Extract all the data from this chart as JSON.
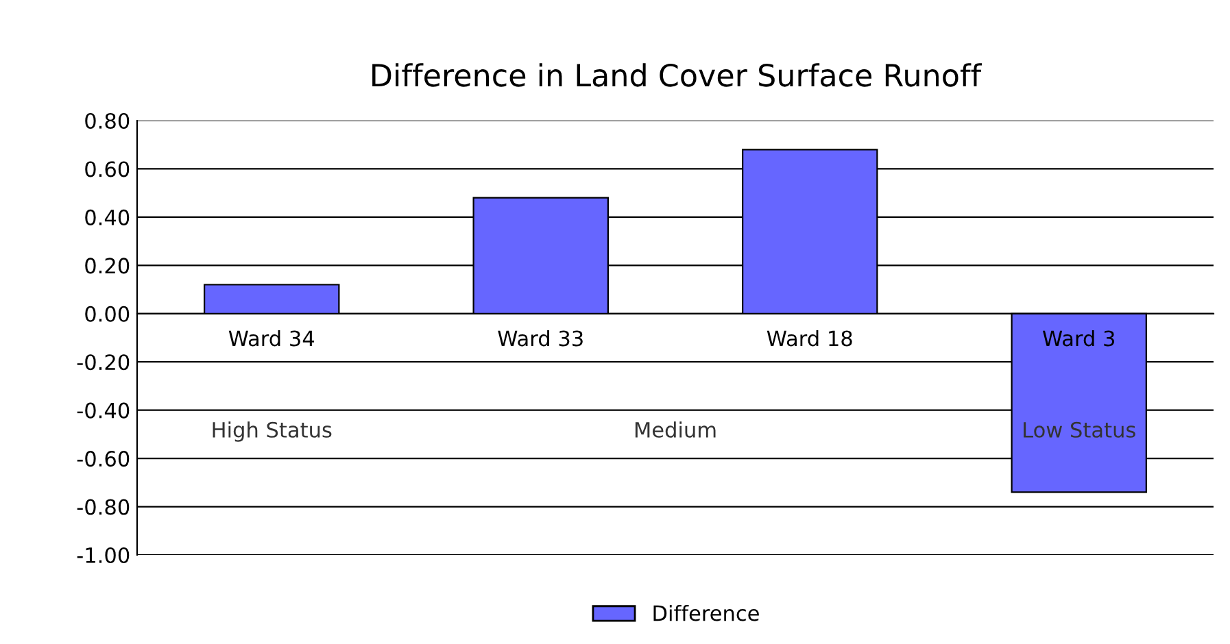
{
  "chart_data": {
    "type": "bar",
    "title": "Difference in Land Cover Surface Runoff",
    "categories": [
      "Ward 34",
      "Ward 33",
      "Ward 18",
      "Ward 3"
    ],
    "series": [
      {
        "name": "Difference",
        "color": "#6666ff",
        "values": [
          0.12,
          0.48,
          0.68,
          -0.74
        ]
      }
    ],
    "ylim": [
      -1.0,
      0.8
    ],
    "yticks": [
      {
        "value": -1.0,
        "label": "-1.00"
      },
      {
        "value": -0.8,
        "label": "-0.80"
      },
      {
        "value": -0.6,
        "label": "-0.60"
      },
      {
        "value": -0.4,
        "label": "-0.40"
      },
      {
        "value": -0.2,
        "label": "-0.20"
      },
      {
        "value": 0,
        "label": "0.00"
      },
      {
        "value": 0.2,
        "label": "0.20"
      },
      {
        "value": 0.4,
        "label": "0.40"
      },
      {
        "value": 0.6,
        "label": "0.60"
      },
      {
        "value": 0.8,
        "label": "0.80"
      }
    ],
    "annotations": [
      "High Status",
      "Medium",
      "Low Status"
    ],
    "grid": "y",
    "legend": "bottom"
  }
}
